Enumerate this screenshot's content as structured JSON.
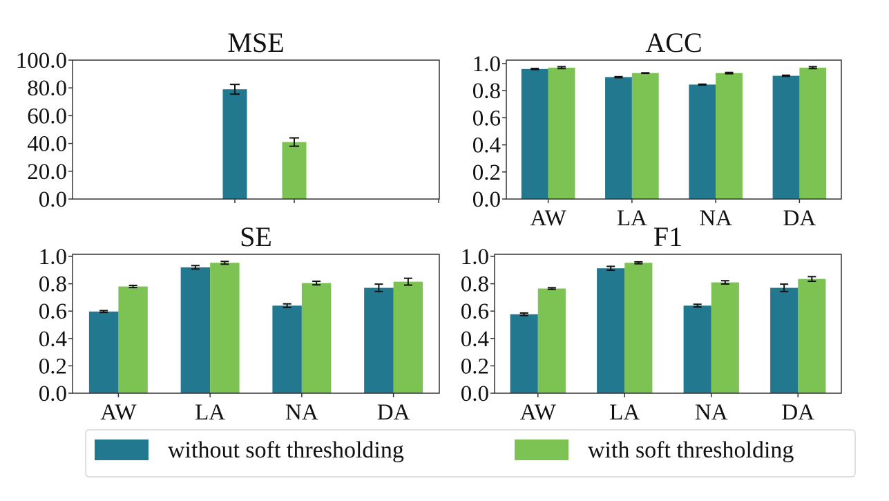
{
  "figure": {
    "legend": {
      "placement": "bottom-center",
      "entries": [
        {
          "label": "without soft thresholding",
          "color": "#21788f"
        },
        {
          "label": "with soft thresholding",
          "color": "#7dc353"
        }
      ]
    }
  },
  "chart_data": [
    {
      "type": "bar",
      "title": "MSE",
      "categories": [
        ""
      ],
      "xtick_labels": [],
      "ylim": [
        0,
        100
      ],
      "yticks": [
        "0.0",
        "20.0",
        "40.0",
        "60.0",
        "80.0",
        "100.0"
      ],
      "ytick_values": [
        0,
        20,
        40,
        60,
        80,
        100
      ],
      "series": [
        {
          "name": "without soft thresholding",
          "values": [
            79.0
          ],
          "errors": [
            3.5
          ]
        },
        {
          "name": "with soft thresholding",
          "values": [
            41.0
          ],
          "errors": [
            3.0
          ]
        }
      ],
      "grid": false,
      "xlabel": "",
      "ylabel": ""
    },
    {
      "type": "bar",
      "title": "ACC",
      "categories": [
        "AW",
        "LA",
        "NA",
        "DA"
      ],
      "xtick_labels": [
        "AW",
        "LA",
        "NA",
        "DA"
      ],
      "ylim": [
        0,
        1.03
      ],
      "yticks": [
        "0.0",
        "0.2",
        "0.4",
        "0.6",
        "0.8",
        "1.0"
      ],
      "ytick_values": [
        0,
        0.2,
        0.4,
        0.6,
        0.8,
        1.0
      ],
      "series": [
        {
          "name": "without soft thresholding",
          "values": [
            0.96,
            0.9,
            0.845,
            0.91
          ],
          "errors": [
            0.004,
            0.004,
            0.003,
            0.004
          ]
        },
        {
          "name": "with soft thresholding",
          "values": [
            0.97,
            0.93,
            0.93,
            0.97
          ],
          "errors": [
            0.007,
            0.002,
            0.005,
            0.007
          ]
        }
      ],
      "grid": false,
      "xlabel": "",
      "ylabel": ""
    },
    {
      "type": "bar",
      "title": "SE",
      "categories": [
        "AW",
        "LA",
        "NA",
        "DA"
      ],
      "xtick_labels": [
        "AW",
        "LA",
        "NA",
        "DA"
      ],
      "ylim": [
        0,
        1.03
      ],
      "yticks": [
        "0.0",
        "0.2",
        "0.4",
        "0.6",
        "0.8",
        "1.0"
      ],
      "ytick_values": [
        0,
        0.2,
        0.4,
        0.6,
        0.8,
        1.0
      ],
      "series": [
        {
          "name": "without soft thresholding",
          "values": [
            0.597,
            0.92,
            0.64,
            0.77
          ],
          "errors": [
            0.007,
            0.013,
            0.013,
            0.027
          ]
        },
        {
          "name": "with soft thresholding",
          "values": [
            0.78,
            0.953,
            0.805,
            0.815
          ],
          "errors": [
            0.008,
            0.01,
            0.013,
            0.025
          ]
        }
      ],
      "grid": false,
      "xlabel": "",
      "ylabel": ""
    },
    {
      "type": "bar",
      "title": "F1",
      "categories": [
        "AW",
        "LA",
        "NA",
        "DA"
      ],
      "xtick_labels": [
        "AW",
        "LA",
        "NA",
        "DA"
      ],
      "ylim": [
        0,
        1.03
      ],
      "yticks": [
        "0.0",
        "0.2",
        "0.4",
        "0.6",
        "0.8",
        "1.0"
      ],
      "ytick_values": [
        0,
        0.2,
        0.4,
        0.6,
        0.8,
        1.0
      ],
      "series": [
        {
          "name": "without soft thresholding",
          "values": [
            0.577,
            0.913,
            0.64,
            0.77
          ],
          "errors": [
            0.009,
            0.014,
            0.01,
            0.027
          ]
        },
        {
          "name": "with soft thresholding",
          "values": [
            0.765,
            0.953,
            0.81,
            0.835
          ],
          "errors": [
            0.006,
            0.007,
            0.012,
            0.017
          ]
        }
      ],
      "grid": false,
      "xlabel": "",
      "ylabel": ""
    }
  ]
}
